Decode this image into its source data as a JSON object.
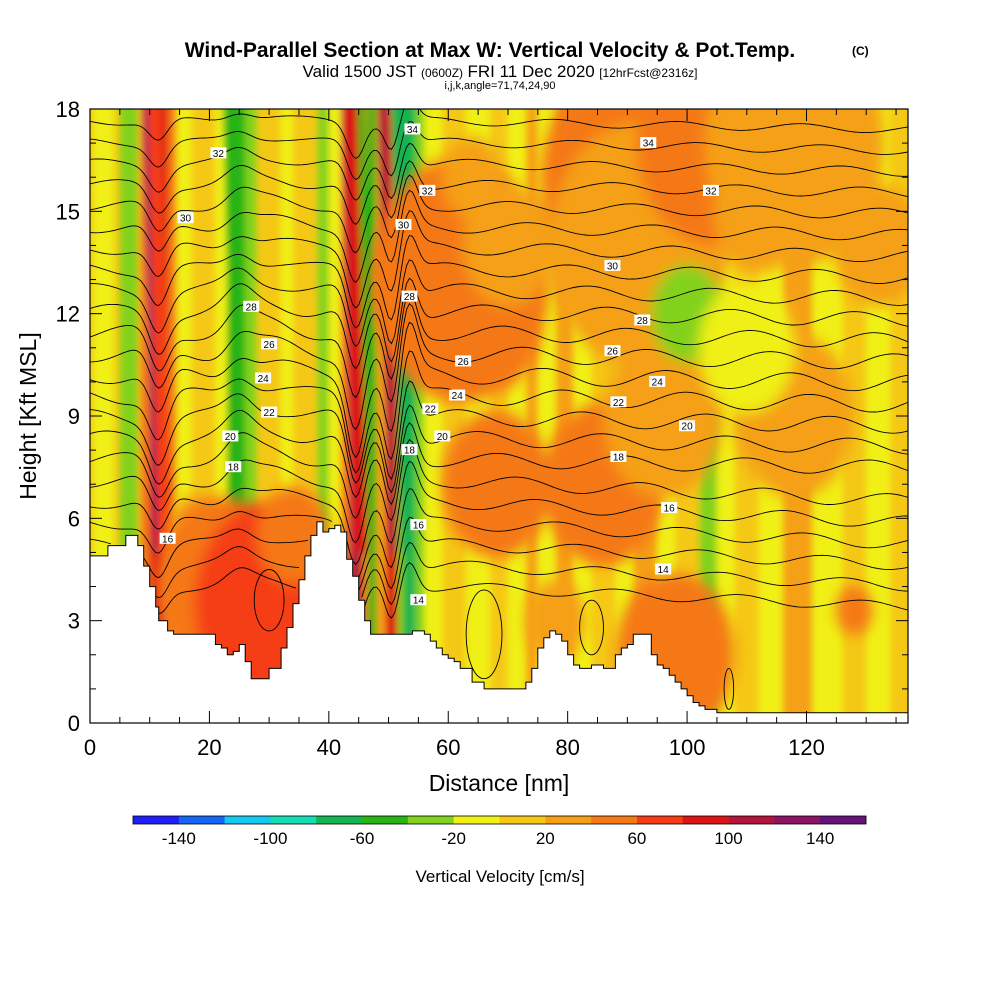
{
  "header": {
    "title": "Wind-Parallel Section at Max W: Vertical Velocity & Pot.Temp.",
    "title_mark": "(C)",
    "valid_prefix": "Valid 1500 JST",
    "valid_zulu": "(0600Z)",
    "valid_date": "FRI 11 Dec 2020",
    "forecast": "[12hrFcst@2316z]",
    "indices": "i,j,k,angle=71,74,24,90"
  },
  "chart_data": {
    "type": "heatmap",
    "xlabel": "Distance [nm]",
    "ylabel": "Height [Kft MSL]",
    "xlim": [
      0,
      137
    ],
    "ylim": [
      0,
      18
    ],
    "xticks": [
      "0",
      "20",
      "40",
      "60",
      "80",
      "100",
      "120"
    ],
    "yticks": [
      "0",
      "3",
      "6",
      "9",
      "12",
      "15",
      "18"
    ],
    "xtick_values": [
      0,
      20,
      40,
      60,
      80,
      100,
      120
    ],
    "ytick_values": [
      0,
      3,
      6,
      9,
      12,
      15,
      18
    ],
    "colorbar": {
      "label": "Vertical Velocity [cm/s]",
      "tick_labels": [
        "-140",
        "-100",
        "-60",
        "-20",
        "20",
        "60",
        "100",
        "140"
      ],
      "tick_values": [
        -140,
        -100,
        -60,
        -20,
        20,
        60,
        100,
        140
      ],
      "range": [
        -160,
        160
      ],
      "colors": [
        "#1e1efa",
        "#1464f5",
        "#14c8f0",
        "#14dcb4",
        "#14b450",
        "#28b414",
        "#82d21e",
        "#f0f014",
        "#f5c814",
        "#f5a014",
        "#f57814",
        "#f53c14",
        "#dc1414",
        "#b4143c",
        "#8c1464",
        "#641478"
      ]
    },
    "potential_temperature_contours": {
      "unit_note": "isentrope labels",
      "levels": [
        14,
        16,
        18,
        20,
        22,
        24,
        26,
        28,
        30,
        32,
        34
      ]
    },
    "terrain": {
      "x": [
        0,
        3,
        3,
        5,
        6,
        7,
        8,
        9,
        10,
        11,
        11.5,
        12,
        13,
        14,
        15,
        16,
        17,
        18,
        19,
        20,
        21,
        22,
        23,
        24,
        25,
        26,
        27,
        28,
        29,
        30,
        31,
        32,
        33,
        34,
        35,
        36,
        37,
        38,
        39,
        40,
        41,
        42,
        43,
        44,
        45,
        46,
        47,
        48,
        49,
        50,
        51,
        52,
        53,
        54,
        55,
        56,
        57,
        58,
        59,
        60,
        61,
        62,
        63,
        64,
        65,
        66,
        67,
        68,
        69,
        70,
        71,
        72,
        73,
        74,
        75,
        76,
        77,
        78,
        79,
        80,
        81,
        82,
        83,
        84,
        85,
        86,
        87,
        88,
        89,
        90,
        91,
        92,
        93,
        94,
        95,
        96,
        97,
        98,
        99,
        100,
        101,
        102,
        103,
        104,
        105,
        106,
        107,
        108,
        109,
        110,
        115,
        120,
        125,
        130,
        137
      ],
      "h": [
        4.9,
        4.9,
        5.2,
        5.2,
        5.5,
        5.5,
        5.2,
        4.6,
        4.0,
        3.4,
        3.0,
        3.0,
        2.7,
        2.6,
        2.6,
        2.6,
        2.6,
        2.6,
        2.6,
        2.6,
        2.3,
        2.2,
        2.0,
        2.1,
        2.3,
        1.8,
        1.3,
        1.3,
        1.3,
        1.6,
        1.6,
        2.2,
        2.8,
        3.5,
        4.2,
        4.9,
        5.5,
        5.9,
        5.6,
        5.7,
        5.8,
        5.6,
        4.8,
        4.3,
        3.6,
        3.0,
        2.6,
        2.6,
        2.6,
        2.6,
        2.6,
        2.6,
        2.6,
        2.7,
        2.7,
        2.6,
        2.4,
        2.2,
        2.0,
        1.9,
        1.8,
        1.6,
        1.6,
        1.2,
        1.2,
        1.0,
        1.0,
        1.0,
        1.0,
        1.0,
        1.0,
        1.0,
        1.2,
        1.6,
        2.2,
        2.5,
        2.7,
        2.6,
        2.4,
        2.0,
        1.7,
        1.6,
        1.6,
        1.7,
        1.7,
        1.6,
        1.6,
        2.0,
        2.2,
        2.3,
        2.6,
        2.6,
        2.6,
        2.0,
        1.7,
        1.6,
        1.4,
        1.2,
        1.0,
        0.8,
        0.6,
        0.5,
        0.4,
        0.4,
        0.3,
        0.3,
        0.3,
        0.3,
        0.3,
        0.3,
        0.3,
        0.3,
        0.3,
        0.3,
        0.3
      ]
    },
    "contour_labels": [
      {
        "text": "32",
        "x": 21.5,
        "y": 16.7
      },
      {
        "text": "30",
        "x": 16.0,
        "y": 14.8
      },
      {
        "text": "28",
        "x": 27.0,
        "y": 12.2
      },
      {
        "text": "26",
        "x": 30.0,
        "y": 11.1
      },
      {
        "text": "24",
        "x": 29.0,
        "y": 10.1
      },
      {
        "text": "22",
        "x": 30.0,
        "y": 9.1
      },
      {
        "text": "20",
        "x": 23.5,
        "y": 8.4
      },
      {
        "text": "18",
        "x": 24.0,
        "y": 7.5
      },
      {
        "text": "16",
        "x": 13.0,
        "y": 5.4
      },
      {
        "text": "34",
        "x": 54.0,
        "y": 17.4
      },
      {
        "text": "32",
        "x": 56.5,
        "y": 15.6
      },
      {
        "text": "30",
        "x": 52.5,
        "y": 14.6
      },
      {
        "text": "28",
        "x": 53.5,
        "y": 12.5
      },
      {
        "text": "26",
        "x": 62.5,
        "y": 10.6
      },
      {
        "text": "24",
        "x": 61.5,
        "y": 9.6
      },
      {
        "text": "22",
        "x": 57.0,
        "y": 9.2
      },
      {
        "text": "20",
        "x": 59.0,
        "y": 8.4
      },
      {
        "text": "18",
        "x": 53.5,
        "y": 8.0
      },
      {
        "text": "16",
        "x": 55.0,
        "y": 5.8
      },
      {
        "text": "14",
        "x": 55.0,
        "y": 3.6
      },
      {
        "text": "34",
        "x": 93.5,
        "y": 17.0
      },
      {
        "text": "32",
        "x": 104.0,
        "y": 15.6
      },
      {
        "text": "30",
        "x": 87.5,
        "y": 13.4
      },
      {
        "text": "28",
        "x": 92.5,
        "y": 11.8
      },
      {
        "text": "26",
        "x": 87.5,
        "y": 10.9
      },
      {
        "text": "24",
        "x": 95.0,
        "y": 10.0
      },
      {
        "text": "22",
        "x": 88.5,
        "y": 9.4
      },
      {
        "text": "20",
        "x": 100.0,
        "y": 8.7
      },
      {
        "text": "18",
        "x": 88.5,
        "y": 7.8
      },
      {
        "text": "16",
        "x": 97.0,
        "y": 6.3
      },
      {
        "text": "14",
        "x": 96.0,
        "y": 4.5
      }
    ],
    "updraft_cores": [
      {
        "x": 11.5,
        "w": 85,
        "peak": "red"
      },
      {
        "x": 44.5,
        "w": 95,
        "peak": "dark-red"
      },
      {
        "x": 50.5,
        "w": 75,
        "peak": "red"
      }
    ],
    "downdraft_cores": [
      {
        "x": 24.5,
        "w": -45
      },
      {
        "x": 47.0,
        "w": -50
      },
      {
        "x": 53.5,
        "w": -95
      }
    ]
  }
}
